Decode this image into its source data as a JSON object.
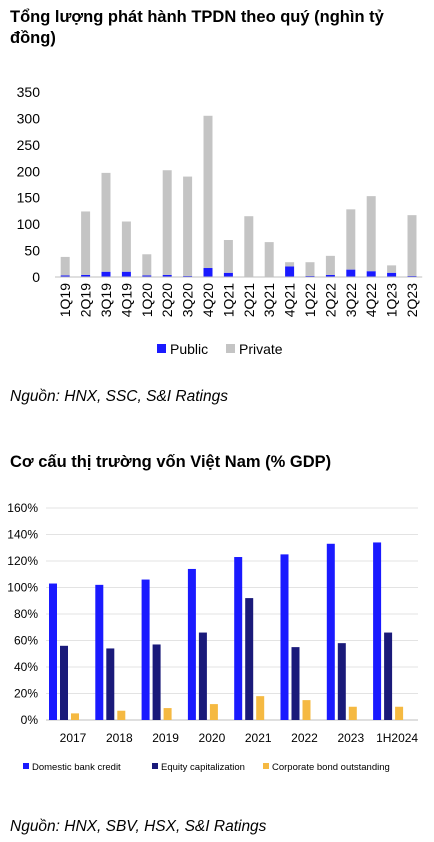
{
  "charts": {
    "chart1_title": "Tổng lượng phát hành TPDN theo quý (nghìn tỷ đồng)",
    "chart1_source": "Nguồn: HNX, SSC, S&I Ratings",
    "chart2_title": "Cơ cấu thị trường vốn Việt Nam (% GDP)",
    "chart2_source": "Nguồn: HNX, SBV, HSX, S&I Ratings"
  },
  "colors": {
    "public": "#1a1aff",
    "private": "#c4c4c4",
    "domestic": "#1a1aff",
    "equity": "#1a1a7a",
    "corporate": "#f5b942"
  },
  "chart_data": [
    {
      "type": "bar",
      "stacked": true,
      "title": "Tổng lượng phát hành TPDN theo quý (nghìn tỷ đồng)",
      "categories": [
        "1Q19",
        "2Q19",
        "3Q19",
        "4Q19",
        "1Q20",
        "2Q20",
        "3Q20",
        "4Q20",
        "1Q21",
        "2Q21",
        "3Q21",
        "4Q21",
        "1Q22",
        "2Q22",
        "3Q22",
        "4Q22",
        "1Q23",
        "2Q23"
      ],
      "series": [
        {
          "name": "Public",
          "values": [
            3,
            4,
            10,
            10,
            3,
            4,
            2,
            17,
            8,
            0,
            0,
            20,
            2,
            4,
            14,
            11,
            8,
            2
          ]
        },
        {
          "name": "Private",
          "values": [
            35,
            120,
            187,
            95,
            40,
            198,
            188,
            288,
            62,
            115,
            66,
            8,
            26,
            36,
            114,
            142,
            14,
            115
          ]
        }
      ],
      "ylim": [
        0,
        350
      ],
      "yticks": [
        0,
        50,
        100,
        150,
        200,
        250,
        300,
        350
      ],
      "legend": "bottom",
      "grid": false
    },
    {
      "type": "bar",
      "title": "Cơ cấu thị trường vốn Việt Nam (% GDP)",
      "categories": [
        "2017",
        "2018",
        "2019",
        "2020",
        "2021",
        "2022",
        "2023",
        "1H2024"
      ],
      "series": [
        {
          "name": "Domestic bank credit",
          "values": [
            103,
            102,
            106,
            114,
            123,
            125,
            133,
            134
          ]
        },
        {
          "name": "Equity capitalization",
          "values": [
            56,
            54,
            57,
            66,
            92,
            55,
            58,
            66
          ]
        },
        {
          "name": "Corporate bond outstanding",
          "values": [
            5,
            7,
            9,
            12,
            18,
            15,
            10,
            10
          ]
        }
      ],
      "ylim": [
        0,
        160
      ],
      "yticks": [
        "0%",
        "20%",
        "40%",
        "60%",
        "80%",
        "100%",
        "120%",
        "140%",
        "160%"
      ],
      "legend": "bottom",
      "grid": true
    }
  ]
}
